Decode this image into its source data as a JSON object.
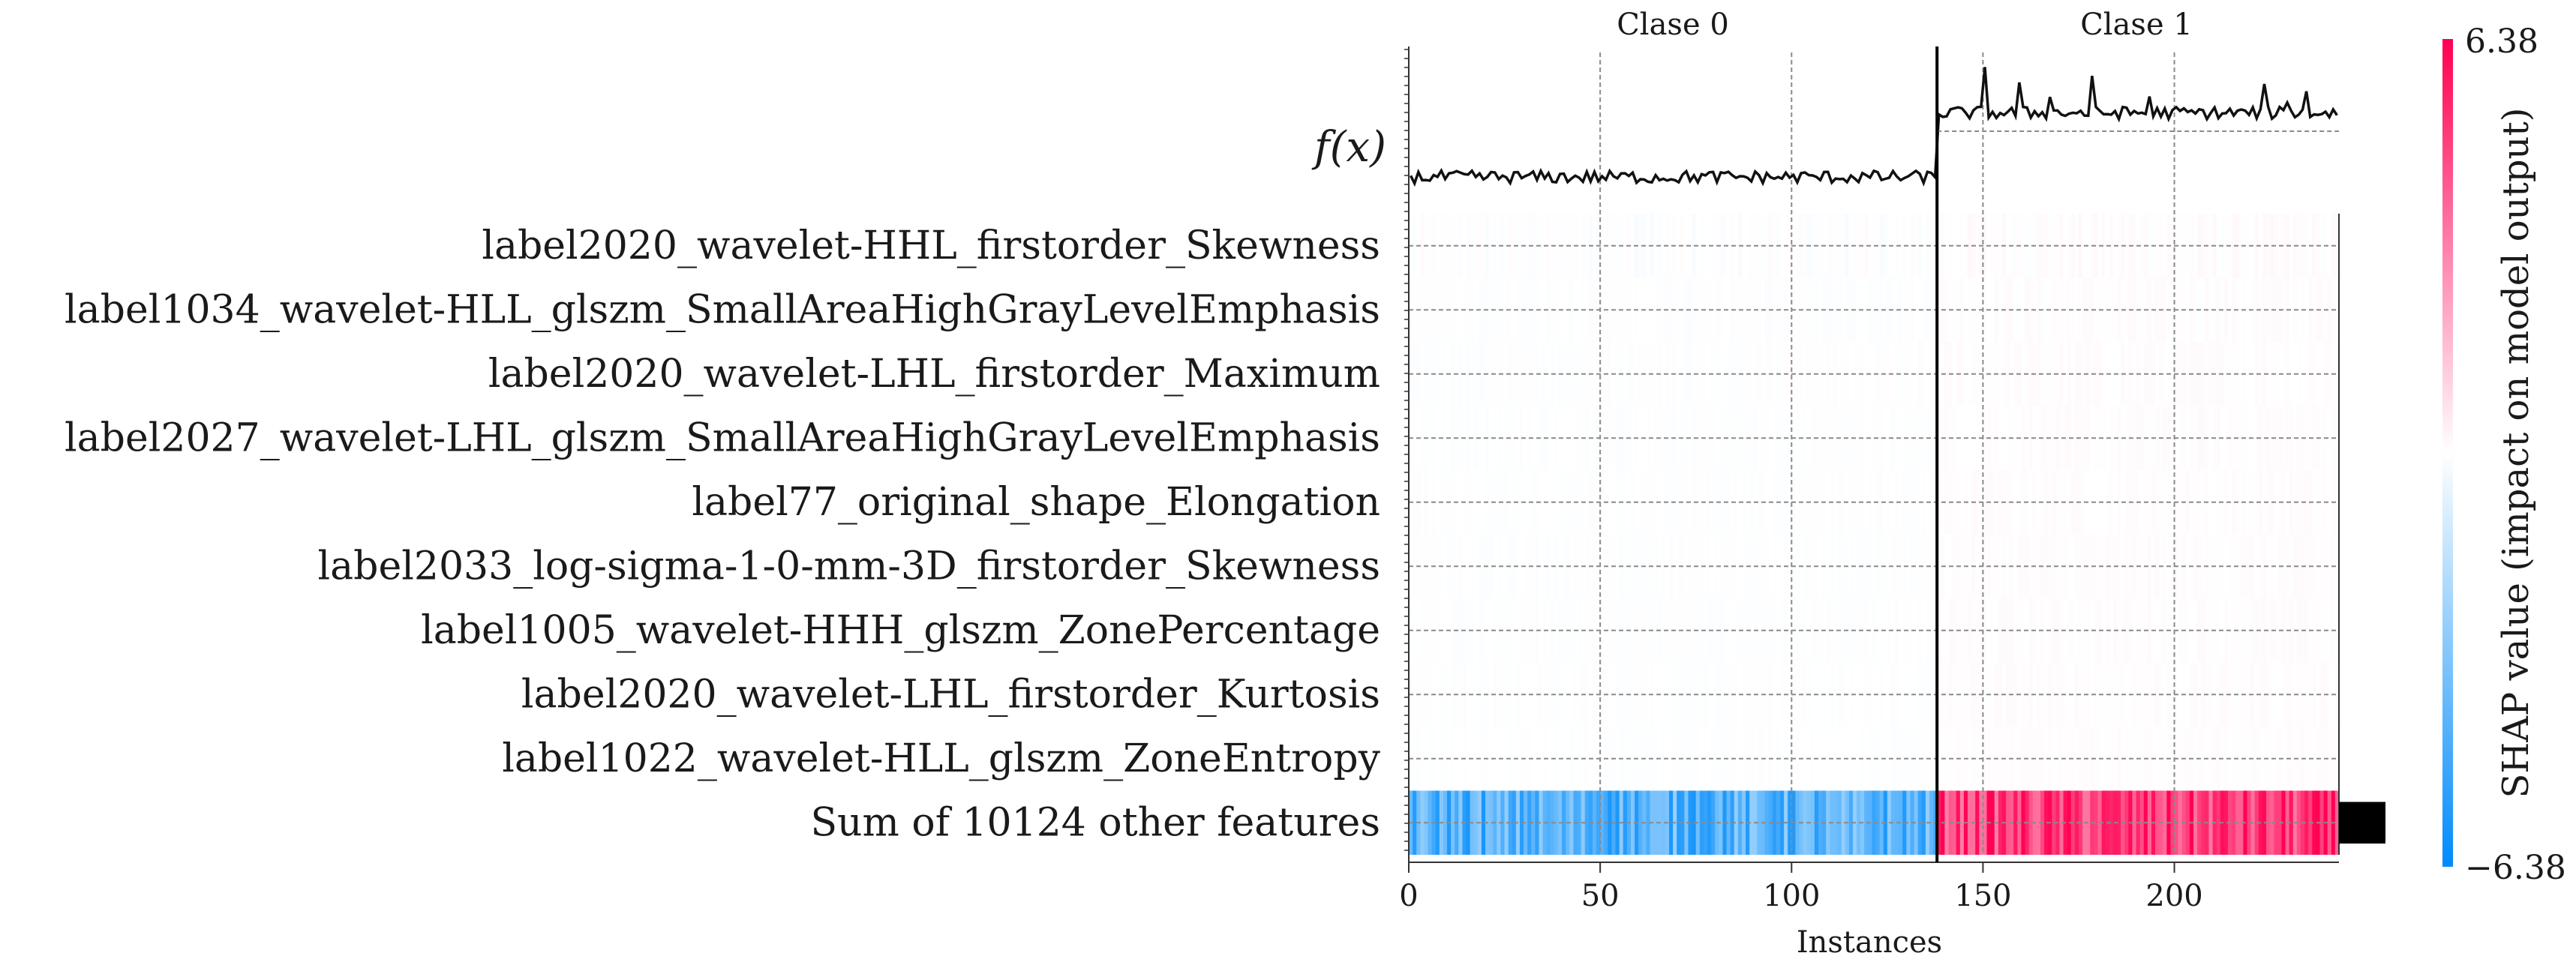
{
  "chart_data": {
    "type": "heatmap",
    "title": "",
    "xlabel": "Instances",
    "ylabel": "",
    "xlim": [
      0,
      243
    ],
    "x_ticks": [
      0,
      50,
      100,
      150,
      200
    ],
    "class_split": 138,
    "group_labels": [
      "Clase 0",
      "Clase 1"
    ],
    "fx_label": "f(x)",
    "features": [
      "label2020_wavelet-HHL_firstorder_Skewness",
      "label1034_wavelet-HLL_glszm_SmallAreaHighGrayLevelEmphasis",
      "label2020_wavelet-LHL_firstorder_Maximum",
      "label2027_wavelet-LHL_glszm_SmallAreaHighGrayLevelEmphasis",
      "label77_original_shape_Elongation",
      "label2033_log-sigma-1-0-mm-3D_firstorder_Skewness",
      "label1005_wavelet-HHH_glszm_ZonePercentage",
      "label2020_wavelet-LHL_firstorder_Kurtosis",
      "label1022_wavelet-HLL_glszm_ZoneEntropy",
      "Sum of 10124 other features"
    ],
    "colorbar": {
      "label": "SHAP value (impact on model output)",
      "max_label": "6.38",
      "min_label": "−6.38",
      "vmin": -6.38,
      "vmax": 6.38,
      "low_color": "#008bfb",
      "high_color": "#ff0052"
    },
    "fx_level": {
      "class0": -0.2,
      "class1": 1.2
    },
    "fx_spikes": [
      [
        150,
        0.9
      ],
      [
        159,
        0.6
      ],
      [
        178,
        0.7
      ],
      [
        167,
        0.45
      ],
      [
        223,
        0.55
      ],
      [
        234,
        0.45
      ],
      [
        229,
        0.35
      ],
      [
        193,
        0.35
      ]
    ],
    "sum_row": {
      "class0_mean": -4.2,
      "class1_mean": 4.8
    },
    "feature_importance": [
      0.006,
      0.004,
      0.004,
      0.003,
      0.003,
      0.003,
      0.003,
      0.003,
      0.002,
      1.0
    ]
  }
}
